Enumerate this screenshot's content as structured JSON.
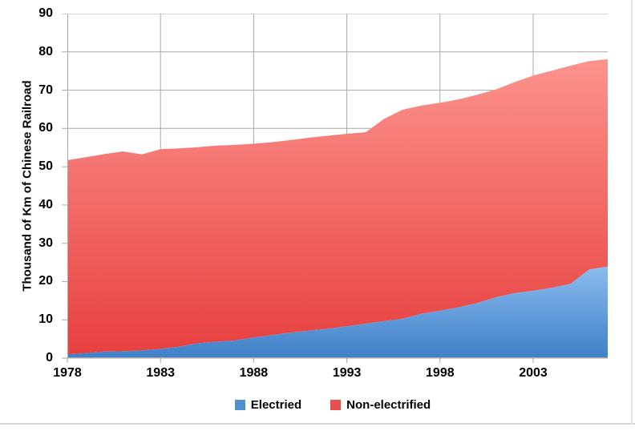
{
  "chart_data": {
    "type": "area",
    "stacked": true,
    "title": "",
    "ylabel": "Thousand of Km of Chinese Railroad",
    "xlabel": "",
    "x": [
      1978,
      1979,
      1980,
      1981,
      1982,
      1983,
      1984,
      1985,
      1986,
      1987,
      1988,
      1989,
      1990,
      1991,
      1992,
      1993,
      1994,
      1995,
      1996,
      1997,
      1998,
      1999,
      2000,
      2001,
      2002,
      2003,
      2004,
      2005,
      2006,
      2007
    ],
    "xticks": [
      1978,
      1983,
      1988,
      1993,
      1998,
      2003
    ],
    "yticks": [
      0,
      10,
      20,
      30,
      40,
      50,
      60,
      70,
      80,
      90
    ],
    "xlim": [
      1978,
      2007
    ],
    "ylim": [
      0,
      90
    ],
    "grid": true,
    "legend_position": "bottom",
    "series": [
      {
        "name": "Electried",
        "values": [
          1.0,
          1.3,
          1.7,
          1.8,
          2.0,
          2.4,
          3.0,
          3.9,
          4.3,
          4.6,
          5.4,
          6.0,
          6.7,
          7.2,
          7.7,
          8.3,
          9.0,
          9.7,
          10.3,
          11.6,
          12.4,
          13.3,
          14.4,
          15.9,
          17.0,
          17.6,
          18.4,
          19.4,
          23.2,
          23.9
        ],
        "color_top": "#8CBCEE",
        "color_bottom": "#3E80C8",
        "legend_color": "#4E8FD0"
      },
      {
        "name": "Non-electrified",
        "values": [
          50.7,
          51.2,
          51.6,
          52.2,
          51.2,
          52.2,
          51.8,
          51.2,
          51.2,
          51.1,
          50.6,
          50.4,
          50.3,
          50.4,
          50.4,
          50.3,
          50.0,
          52.8,
          54.6,
          54.4,
          54.3,
          54.3,
          54.4,
          54.3,
          55.1,
          56.2,
          56.7,
          57.0,
          54.4,
          54.2
        ],
        "color_top": "#FC938D",
        "color_bottom": "#E7403F",
        "legend_color": "#E85050"
      }
    ]
  },
  "style": {
    "grid_color": "#A8A8A8",
    "axis_color": "#A8A8A8",
    "text_color": "#000000",
    "background": "#FFFFFF"
  }
}
